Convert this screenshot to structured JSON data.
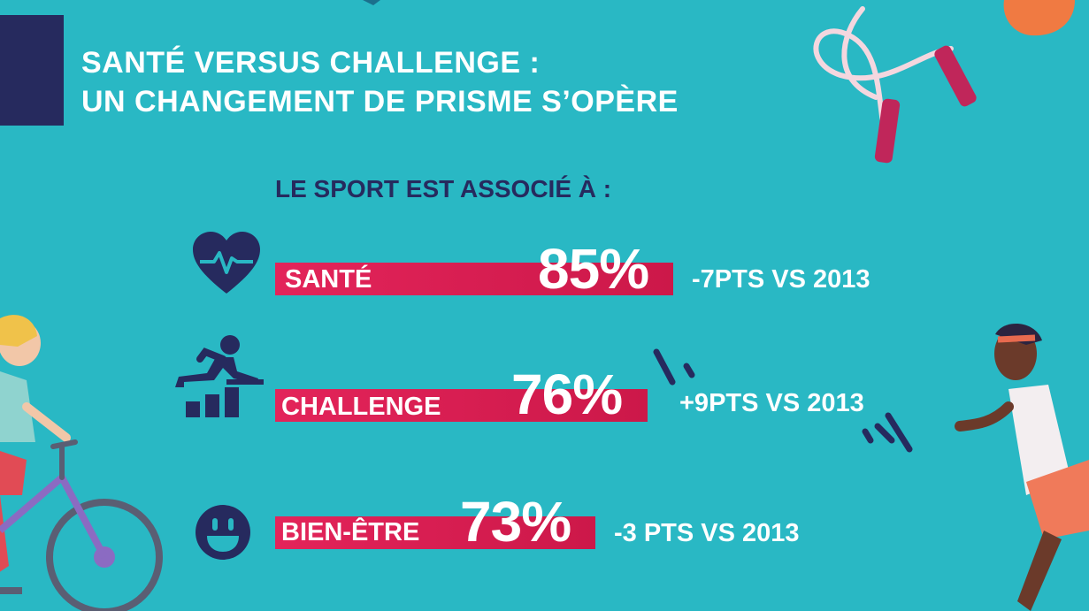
{
  "colors": {
    "background": "#29b8c4",
    "navy": "#262a5e",
    "bar": "#d91d52",
    "text_light": "#ffffff"
  },
  "header": {
    "title_line1": "SANTÉ VERSUS CHALLENGE :",
    "title_line2": "UN CHANGEMENT DE PRISME S’OPÈRE"
  },
  "chart_data": {
    "type": "bar",
    "orientation": "horizontal",
    "title": "LE SPORT EST ASSOCIÉ À :",
    "categories": [
      "SANTÉ",
      "CHALLENGE",
      "BIEN-ÊTRE"
    ],
    "values": [
      85,
      76,
      73
    ],
    "value_labels": [
      "85%",
      "76%",
      "73%"
    ],
    "annotations": [
      "-7PTS VS 2013",
      "+9PTS VS 2013",
      "-3 PTS VS 2013"
    ],
    "icons": [
      "heart-pulse-icon",
      "hurdle-runner-icon",
      "smiley-icon"
    ],
    "xlim": [
      0,
      100
    ]
  }
}
